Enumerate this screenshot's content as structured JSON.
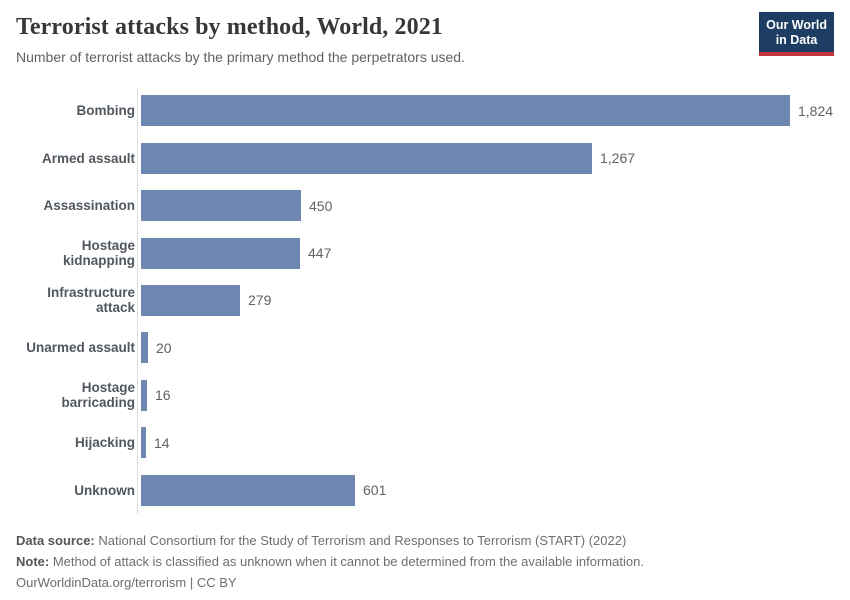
{
  "header": {
    "title": "Terrorist attacks by method, World, 2021",
    "subtitle": "Number of terrorist attacks by the primary method the perpetrators used.",
    "logo": {
      "line1": "Our World",
      "line2": "in Data",
      "background_color": "#1d3d63",
      "accent_color": "#c5353b"
    }
  },
  "chart_data": {
    "type": "bar",
    "orientation": "horizontal",
    "title": "Terrorist attacks by method, World, 2021",
    "subtitle": "Number of terrorist attacks by the primary method the perpetrators used.",
    "categories": [
      "Bombing",
      "Armed assault",
      "Assassination",
      "Hostage kidnapping",
      "Infrastructure attack",
      "Unarmed assault",
      "Hostage barricading",
      "Hijacking",
      "Unknown"
    ],
    "values": [
      1824,
      1267,
      450,
      447,
      279,
      20,
      16,
      14,
      601
    ],
    "value_labels": [
      "1,824",
      "1,267",
      "450",
      "447",
      "279",
      "20",
      "16",
      "14",
      "601"
    ],
    "xlabel": "",
    "ylabel": "",
    "xlim": [
      0,
      1824
    ],
    "grid": false,
    "legend": "none",
    "bar_color": "#6d87b0",
    "axis_line_color": "#dcdcdc"
  },
  "footer": {
    "data_source_label": "Data source:",
    "data_source_text": " National Consortium for the Study of Terrorism and Responses to Terrorism (START) (2022)",
    "note_label": "Note:",
    "note_text": " Method of attack is classified as unknown when it cannot be determined from the available information.",
    "license_line": "OurWorldinData.org/terrorism | CC BY"
  }
}
